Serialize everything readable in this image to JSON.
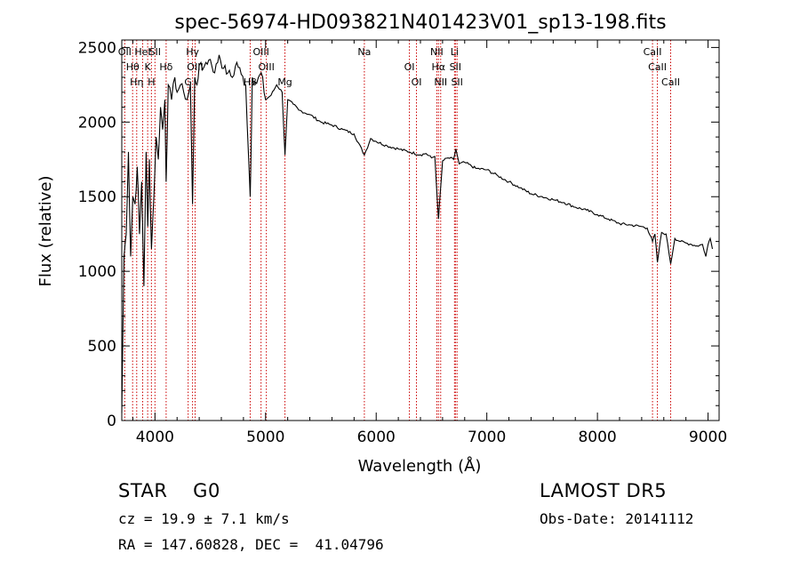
{
  "chart_data": {
    "type": "line",
    "title": "spec-56974-HD093821N401423V01_sp13-198.fits",
    "xlabel": "Wavelength (Å)",
    "ylabel": "Flux (relative)",
    "xlim": [
      3700,
      9100
    ],
    "ylim": [
      0,
      2550
    ],
    "xticks": [
      "4000",
      "5000",
      "6000",
      "7000",
      "8000",
      "9000"
    ],
    "yticks": [
      "0",
      "500",
      "1000",
      "1500",
      "2000",
      "2500"
    ],
    "grid": false,
    "series": [
      {
        "x": [
          3700,
          3720,
          3740,
          3760,
          3780,
          3800,
          3820,
          3840,
          3860,
          3880,
          3900,
          3920,
          3935,
          3950,
          3968,
          3990,
          4010,
          4030,
          4050,
          4070,
          4090,
          4101,
          4120,
          4150,
          4180,
          4200,
          4230,
          4260,
          4290,
          4320,
          4340,
          4360,
          4380,
          4400,
          4430,
          4460,
          4500,
          4540,
          4580,
          4620,
          4660,
          4700,
          4740,
          4780,
          4820,
          4861,
          4880,
          4920,
          4960,
          5000,
          5050,
          5100,
          5150,
          5175,
          5200,
          5250,
          5300,
          5400,
          5500,
          5600,
          5700,
          5800,
          5893,
          5950,
          6000,
          6100,
          6200,
          6300,
          6400,
          6450,
          6500,
          6530,
          6563,
          6600,
          6650,
          6700,
          6720,
          6750,
          6800,
          6900,
          7000,
          7100,
          7200,
          7300,
          7400,
          7500,
          7600,
          7700,
          7800,
          7900,
          8000,
          8100,
          8200,
          8300,
          8400,
          8450,
          8498,
          8520,
          8542,
          8580,
          8620,
          8662,
          8700,
          8750,
          8800,
          8850,
          8900,
          8950,
          8980,
          9000,
          9020,
          9040
        ],
        "y": [
          50,
          1100,
          1250,
          1800,
          1100,
          1500,
          1450,
          1700,
          1250,
          1600,
          900,
          1800,
          1300,
          1750,
          1150,
          1500,
          1900,
          1750,
          2100,
          1950,
          2150,
          1600,
          2250,
          2150,
          2300,
          2200,
          2250,
          2200,
          2150,
          2250,
          1450,
          2300,
          2250,
          2380,
          2350,
          2400,
          2420,
          2330,
          2450,
          2360,
          2330,
          2300,
          2400,
          2320,
          2250,
          1500,
          2300,
          2260,
          2330,
          2150,
          2180,
          2250,
          2200,
          1780,
          2150,
          2120,
          2080,
          2050,
          2000,
          1980,
          1950,
          1920,
          1780,
          1890,
          1870,
          1840,
          1820,
          1800,
          1780,
          1790,
          1760,
          1770,
          1350,
          1740,
          1760,
          1750,
          1820,
          1720,
          1730,
          1690,
          1680,
          1640,
          1600,
          1560,
          1520,
          1500,
          1480,
          1460,
          1430,
          1410,
          1380,
          1350,
          1320,
          1310,
          1300,
          1290,
          1200,
          1250,
          1060,
          1260,
          1250,
          1050,
          1220,
          1200,
          1190,
          1180,
          1170,
          1180,
          1100,
          1180,
          1220,
          1150
        ]
      }
    ],
    "lines": [
      {
        "x": 3727,
        "label": "OII"
      },
      {
        "x": 3798,
        "label": "Hθ"
      },
      {
        "x": 3835,
        "label": "Hη"
      },
      {
        "x": 3889,
        "label": "HeI"
      },
      {
        "x": 3934,
        "label": "K"
      },
      {
        "x": 3968,
        "label": "H"
      },
      {
        "x": 4000,
        "label": "SII"
      },
      {
        "x": 4101,
        "label": "Hδ"
      },
      {
        "x": 4300,
        "label": "G"
      },
      {
        "x": 4340,
        "label": "Hγ"
      },
      {
        "x": 4363,
        "label": "OIII"
      },
      {
        "x": 4861,
        "label": "Hβ"
      },
      {
        "x": 4959,
        "label": "OIII"
      },
      {
        "x": 5007,
        "label": "OIII"
      },
      {
        "x": 5175,
        "label": "Mg"
      },
      {
        "x": 5893,
        "label": "Na"
      },
      {
        "x": 6300,
        "label": "OI"
      },
      {
        "x": 6364,
        "label": "OI"
      },
      {
        "x": 6548,
        "label": "NII"
      },
      {
        "x": 6563,
        "label": "Hα"
      },
      {
        "x": 6583,
        "label": "NII"
      },
      {
        "x": 6708,
        "label": "Li"
      },
      {
        "x": 6716,
        "label": "SII"
      },
      {
        "x": 6731,
        "label": "SII"
      },
      {
        "x": 8498,
        "label": "CaII"
      },
      {
        "x": 8542,
        "label": "CaII"
      },
      {
        "x": 8662,
        "label": "CaII"
      }
    ],
    "line_color": "#cc0000"
  },
  "info": {
    "object_class": "STAR    G0",
    "survey": "LAMOST DR5",
    "redshift": "cz = 19.9 ± 7.1 km/s",
    "obs_date": "Obs-Date: 20141112",
    "coords": "RA = 147.60828, DEC =  41.04796"
  }
}
